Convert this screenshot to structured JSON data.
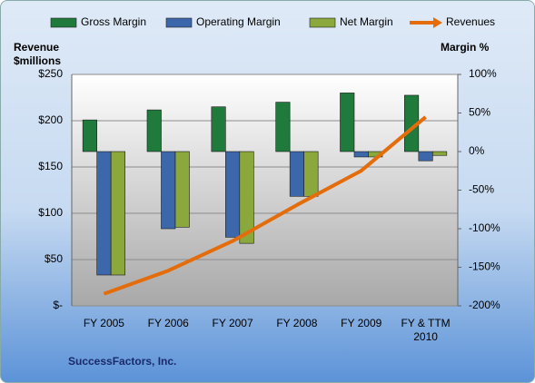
{
  "chart_data": {
    "type": "combo",
    "categories": [
      "FY 2005",
      "FY 2006",
      "FY 2007",
      "FY 2008",
      "FY 2009",
      "FY & TTM 2010"
    ],
    "series": [
      {
        "name": "Gross Margin",
        "type": "bar",
        "axis": "y2",
        "color": "#1f7a3c",
        "values": [
          41,
          54,
          58,
          64,
          76,
          73
        ]
      },
      {
        "name": "Operating Margin",
        "type": "bar",
        "axis": "y2",
        "color": "#3c67aa",
        "values": [
          -160,
          -100,
          -111,
          -58,
          -7,
          -12
        ]
      },
      {
        "name": "Net Margin",
        "type": "bar",
        "axis": "y2",
        "color": "#8aa83c",
        "values": [
          -160,
          -98,
          -119,
          -58,
          -7,
          -5
        ]
      },
      {
        "name": "Revenues",
        "type": "line",
        "axis": "y",
        "color": "#e46c0a",
        "values": [
          13,
          38,
          70,
          109,
          146,
          204
        ]
      }
    ],
    "ylim": [
      0,
      250
    ],
    "yticks": [
      {
        "value": 0,
        "label": "$-"
      },
      {
        "value": 50,
        "label": "$50"
      },
      {
        "value": 100,
        "label": "$100"
      },
      {
        "value": 150,
        "label": "$150"
      },
      {
        "value": 200,
        "label": "$200"
      },
      {
        "value": 250,
        "label": "$250"
      }
    ],
    "y2lim": [
      -200,
      100
    ],
    "y2ticks": [
      {
        "value": -200,
        "label": "-200%"
      },
      {
        "value": -150,
        "label": "-150%"
      },
      {
        "value": -100,
        "label": "-100%"
      },
      {
        "value": -50,
        "label": "-50%"
      },
      {
        "value": 0,
        "label": "0%"
      },
      {
        "value": 50,
        "label": "50%"
      },
      {
        "value": 100,
        "label": "100%"
      }
    ],
    "y_label": "Revenue $millions",
    "y2_label": "Margin %",
    "footer": "SuccessFactors, Inc.",
    "grid": true,
    "legend": "top"
  }
}
